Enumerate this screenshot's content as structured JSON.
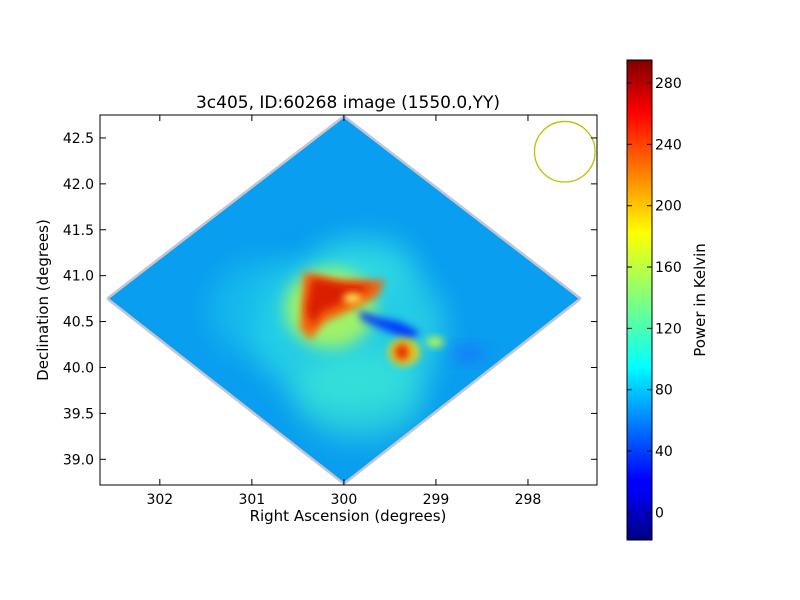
{
  "chart_data": {
    "type": "heatmap",
    "title": "3c405, ID:60268 image (1550.0,YY)",
    "xlabel": "Right Ascension (degrees)",
    "ylabel": "Declination (degrees)",
    "xlim": [
      302.65,
      297.25
    ],
    "ylim": [
      38.72,
      42.75
    ],
    "x_ticks": [
      302,
      301,
      300,
      299,
      298
    ],
    "x_tick_labels": [
      "302",
      "301",
      "300",
      "299",
      "298"
    ],
    "y_ticks": [
      39.0,
      39.5,
      40.0,
      40.5,
      41.0,
      41.5,
      42.0,
      42.5
    ],
    "y_tick_labels": [
      "39.0",
      "39.5",
      "40.0",
      "40.5",
      "41.0",
      "41.5",
      "42.0",
      "42.5"
    ],
    "colorbar": {
      "label": "Power in Kelvin",
      "range": [
        -18,
        295
      ],
      "ticks": [
        0,
        40,
        80,
        120,
        160,
        200,
        240,
        280
      ],
      "tick_labels": [
        "0",
        "40",
        "80",
        "120",
        "160",
        "200",
        "240",
        "280"
      ],
      "colormap": "jet"
    },
    "field_footprint": {
      "shape": "diamond",
      "vertices": [
        {
          "ra": 300.0,
          "dec": 42.72
        },
        {
          "ra": 297.45,
          "dec": 40.75
        },
        {
          "ra": 300.0,
          "dec": 38.75
        },
        {
          "ra": 302.55,
          "dec": 40.75
        }
      ],
      "background_level": 80
    },
    "features": [
      {
        "kind": "hot-region",
        "ra": 300.25,
        "dec": 40.72,
        "value": 270
      },
      {
        "kind": "cold-streak",
        "ra": 299.5,
        "dec": 40.5,
        "value": 40
      },
      {
        "kind": "hot-spot",
        "ra": 299.3,
        "dec": 40.17,
        "value": 250
      },
      {
        "kind": "warm-spot",
        "ra": 299.05,
        "dec": 40.27,
        "value": 160
      },
      {
        "kind": "warm-halo",
        "ra": 300.0,
        "dec": 40.4,
        "value": 110
      }
    ],
    "beam": {
      "ra": 297.6,
      "dec": 42.35,
      "radius_deg": 0.33
    },
    "colors": {
      "beam": "#bfbf00",
      "footprint_edge": "#b0b8c8",
      "background": "#0a9ef0"
    }
  }
}
